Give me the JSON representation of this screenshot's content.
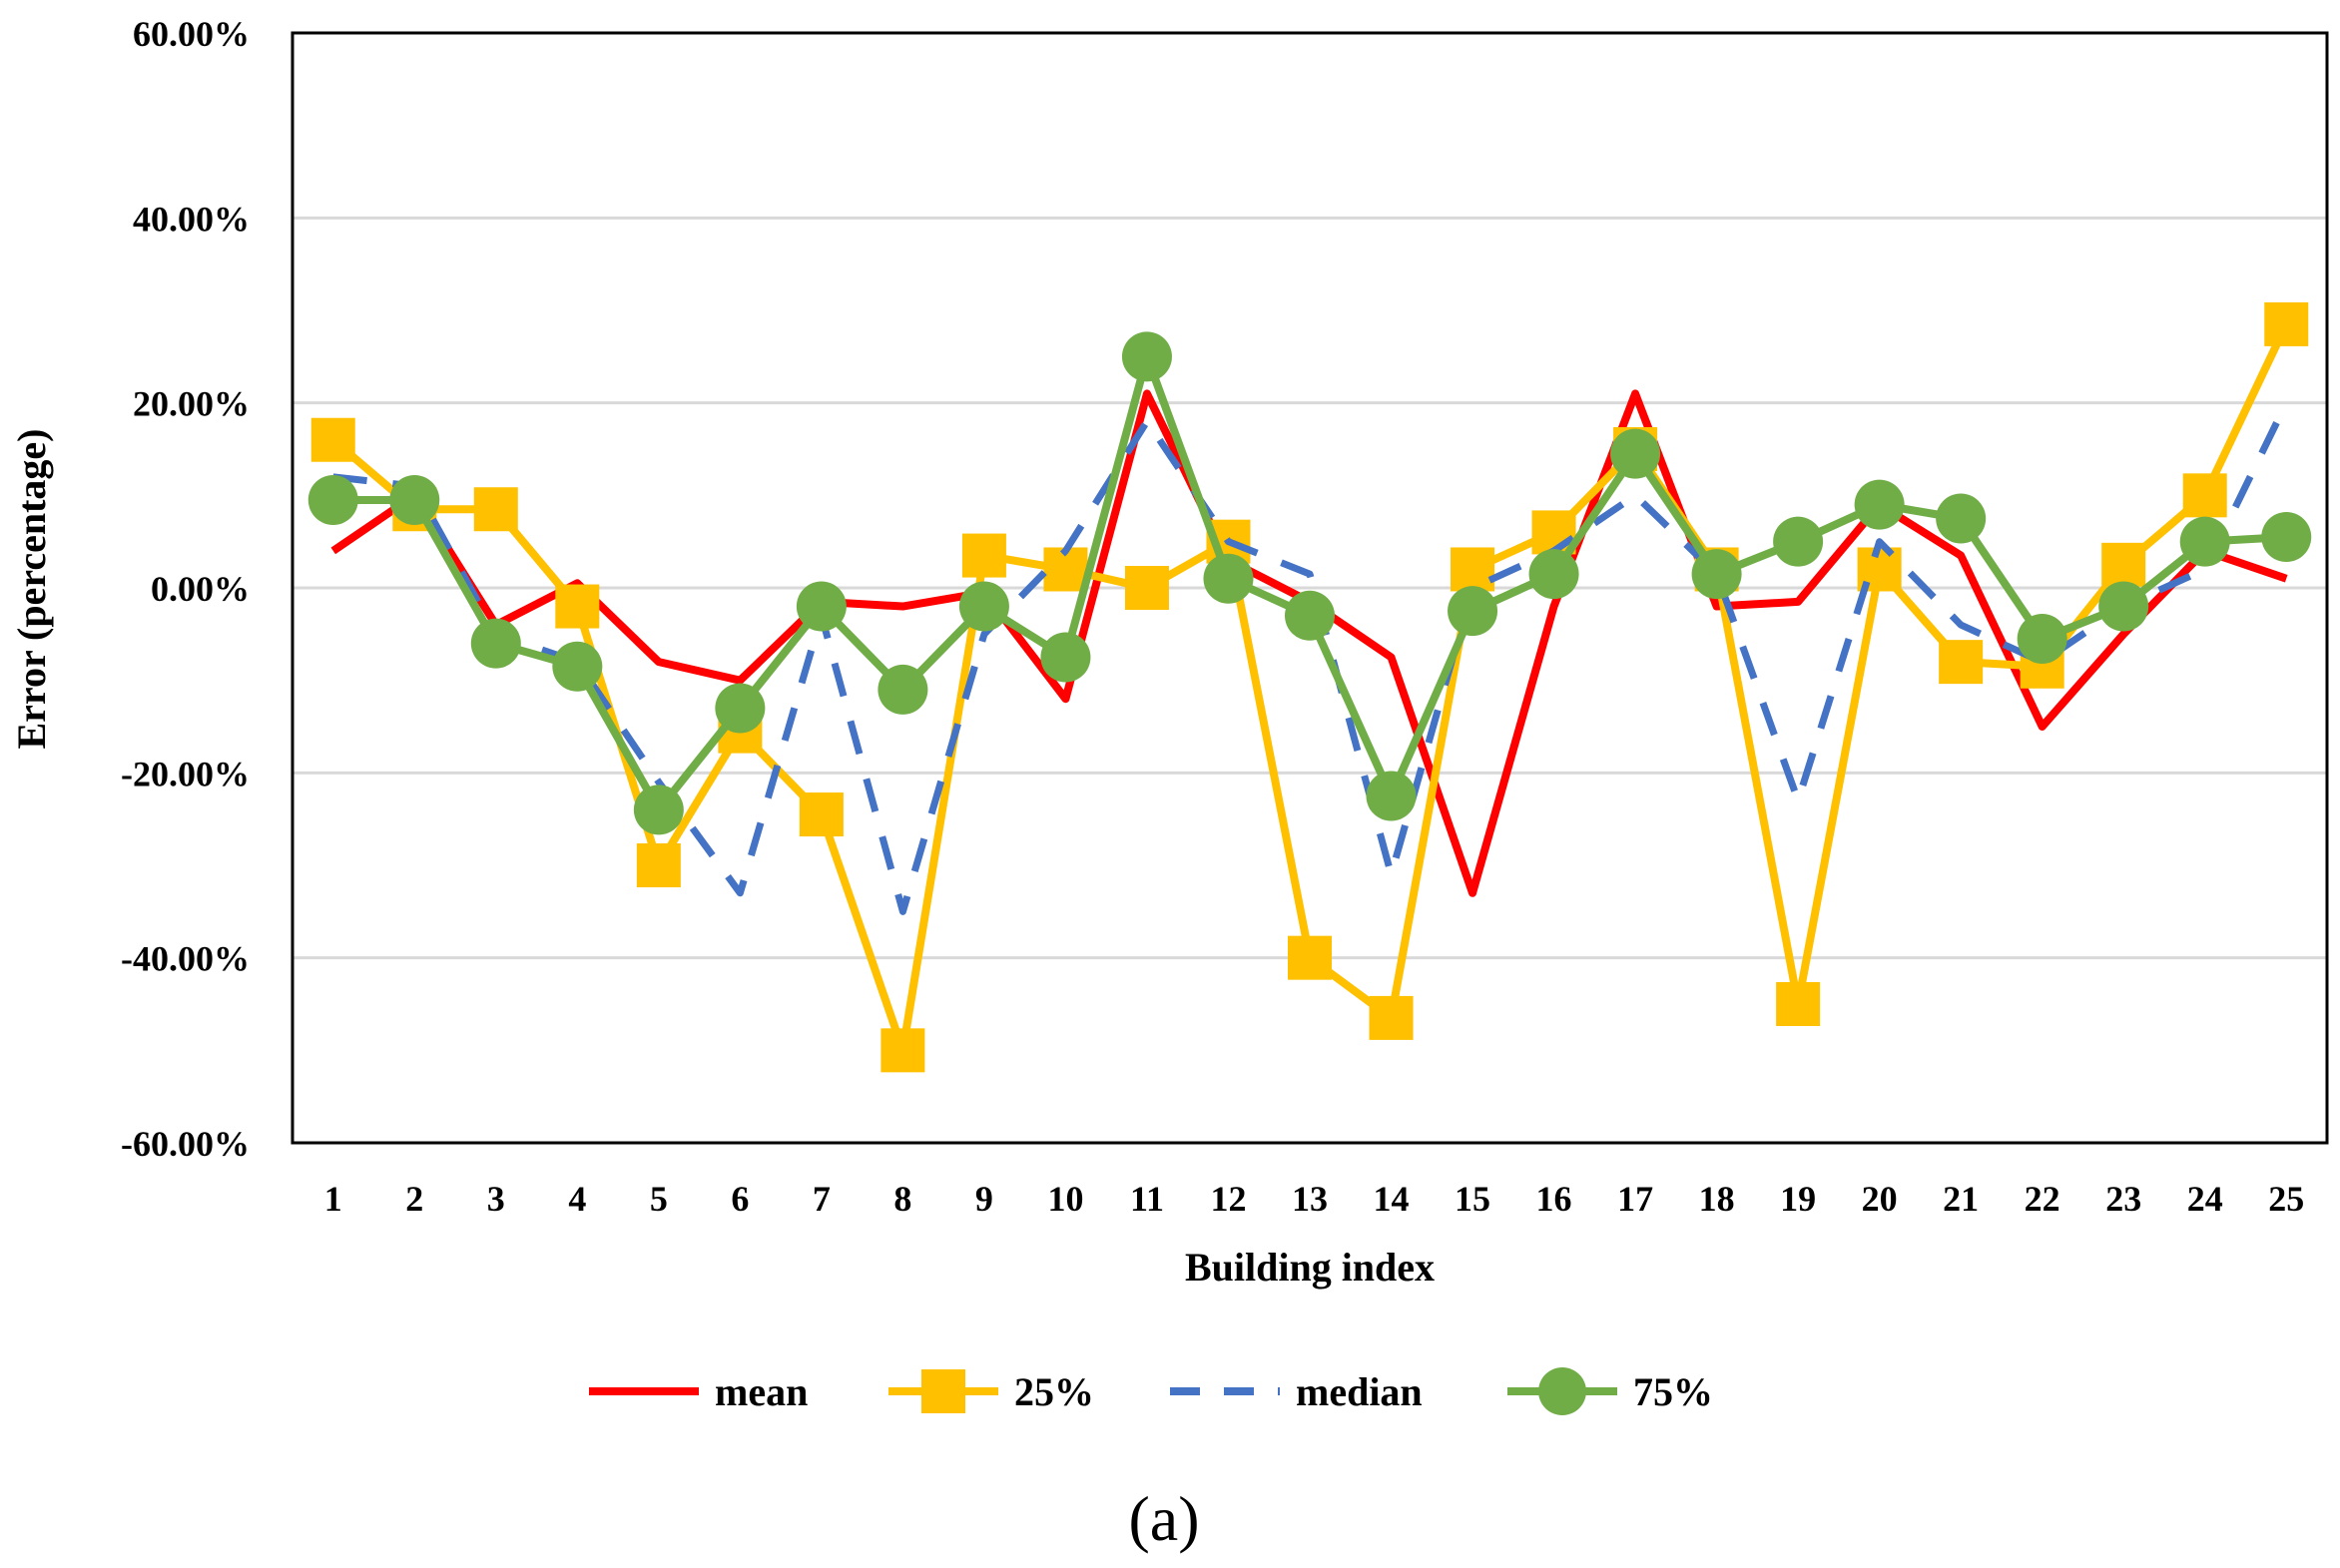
{
  "chart_data": {
    "type": "line",
    "xlabel": "Building index",
    "ylabel": "Error (percentage)",
    "caption": "(a)",
    "ylim": [
      -60,
      60
    ],
    "y_ticks": [
      60,
      40,
      20,
      0,
      -20,
      -40,
      -60
    ],
    "y_tick_labels": [
      "60.00%",
      "40.00%",
      "20.00%",
      "0.00%",
      "-20.00%",
      "-40.00%",
      "-60.00%"
    ],
    "categories": [
      "1",
      "2",
      "3",
      "4",
      "5",
      "6",
      "7",
      "8",
      "9",
      "10",
      "11",
      "12",
      "13",
      "14",
      "15",
      "16",
      "17",
      "18",
      "19",
      "20",
      "21",
      "22",
      "23",
      "24",
      "25"
    ],
    "grid": "horizontal",
    "legend_position": "bottom",
    "series": [
      {
        "name": "mean",
        "color": "#ff0000",
        "style": "solid",
        "marker": "none",
        "values": [
          4,
          10,
          -4,
          0.5,
          -8,
          -10,
          -1.5,
          -2,
          -0.5,
          -12,
          21,
          3,
          -1.5,
          -7.5,
          -33,
          -2,
          21,
          -2,
          -1.5,
          9,
          3.5,
          -15,
          -5,
          4,
          1
        ]
      },
      {
        "name": "25%",
        "color": "#ffc000",
        "style": "solid",
        "marker": "square",
        "values": [
          16,
          8.5,
          8.5,
          -2,
          -30,
          -15.5,
          -24.5,
          -50,
          3.5,
          2,
          0,
          5,
          -40,
          -46.5,
          2,
          6,
          15,
          2,
          -45,
          2,
          -8,
          -8.5,
          2.5,
          10,
          28.5
        ]
      },
      {
        "name": "median",
        "color": "#4472c4",
        "style": "dashed",
        "marker": "none",
        "values": [
          12,
          11,
          -5,
          -8,
          -21,
          -33,
          -3,
          -35,
          -5,
          4,
          18,
          5,
          1.5,
          -31,
          0,
          4,
          10,
          1.5,
          -23,
          5,
          -4,
          -8,
          -2,
          2,
          20
        ]
      },
      {
        "name": "75%",
        "color": "#70ad47",
        "style": "solid",
        "marker": "circle",
        "values": [
          9.5,
          9.5,
          -6,
          -8.5,
          -24,
          -13,
          -2,
          -11,
          -2,
          -7.5,
          25,
          1,
          -3,
          -22.5,
          -2.5,
          1.5,
          14.5,
          1.5,
          5,
          9,
          7.5,
          -5.5,
          -2,
          5,
          5.5
        ]
      }
    ]
  }
}
